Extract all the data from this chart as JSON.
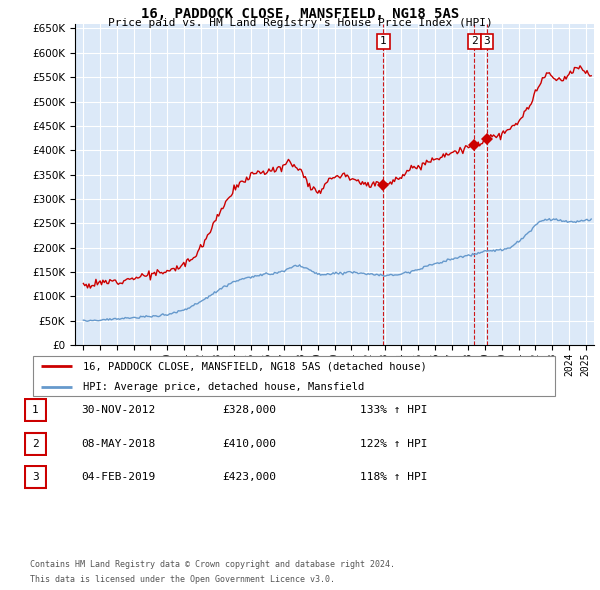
{
  "title": "16, PADDOCK CLOSE, MANSFIELD, NG18 5AS",
  "subtitle": "Price paid vs. HM Land Registry's House Price Index (HPI)",
  "red_line_label": "16, PADDOCK CLOSE, MANSFIELD, NG18 5AS (detached house)",
  "blue_line_label": "HPI: Average price, detached house, Mansfield",
  "transactions": [
    {
      "label": "1",
      "date": "30-NOV-2012",
      "price": 328000,
      "hpi_pct": "133% ↑ HPI",
      "x_year": 2012.92
    },
    {
      "label": "2",
      "date": "08-MAY-2018",
      "price": 410000,
      "hpi_pct": "122% ↑ HPI",
      "x_year": 2018.36
    },
    {
      "label": "3",
      "date": "04-FEB-2019",
      "price": 423000,
      "hpi_pct": "118% ↑ HPI",
      "x_year": 2019.09
    }
  ],
  "footer_line1": "Contains HM Land Registry data © Crown copyright and database right 2024.",
  "footer_line2": "This data is licensed under the Open Government Licence v3.0.",
  "plot_bg_color": "#dce9f8",
  "red_color": "#cc0000",
  "blue_color": "#6699cc",
  "grid_color": "#ffffff",
  "ylim": [
    0,
    660000
  ],
  "xlim_start": 1994.5,
  "xlim_end": 2025.5,
  "red_anchors": [
    [
      1995.0,
      125000
    ],
    [
      1995.5,
      122000
    ],
    [
      1996.0,
      128000
    ],
    [
      1996.5,
      130000
    ],
    [
      1997.0,
      132000
    ],
    [
      1997.5,
      135000
    ],
    [
      1998.0,
      138000
    ],
    [
      1998.5,
      142000
    ],
    [
      1999.0,
      145000
    ],
    [
      1999.5,
      148000
    ],
    [
      2000.0,
      150000
    ],
    [
      2000.5,
      158000
    ],
    [
      2001.0,
      165000
    ],
    [
      2001.5,
      178000
    ],
    [
      2002.0,
      200000
    ],
    [
      2002.5,
      230000
    ],
    [
      2003.0,
      265000
    ],
    [
      2003.5,
      295000
    ],
    [
      2004.0,
      318000
    ],
    [
      2004.5,
      335000
    ],
    [
      2005.0,
      348000
    ],
    [
      2005.5,
      358000
    ],
    [
      2006.0,
      355000
    ],
    [
      2006.5,
      360000
    ],
    [
      2007.0,
      368000
    ],
    [
      2007.3,
      378000
    ],
    [
      2007.6,
      370000
    ],
    [
      2008.0,
      358000
    ],
    [
      2008.3,
      340000
    ],
    [
      2008.6,
      325000
    ],
    [
      2009.0,
      315000
    ],
    [
      2009.3,
      320000
    ],
    [
      2009.6,
      340000
    ],
    [
      2009.9,
      348000
    ],
    [
      2010.2,
      345000
    ],
    [
      2010.5,
      350000
    ],
    [
      2010.8,
      348000
    ],
    [
      2011.0,
      345000
    ],
    [
      2011.3,
      340000
    ],
    [
      2011.6,
      335000
    ],
    [
      2011.9,
      330000
    ],
    [
      2012.2,
      328000
    ],
    [
      2012.5,
      330000
    ],
    [
      2012.92,
      328000
    ],
    [
      2013.2,
      332000
    ],
    [
      2013.5,
      338000
    ],
    [
      2013.8,
      342000
    ],
    [
      2014.0,
      348000
    ],
    [
      2014.5,
      358000
    ],
    [
      2015.0,
      368000
    ],
    [
      2015.5,
      375000
    ],
    [
      2016.0,
      383000
    ],
    [
      2016.5,
      390000
    ],
    [
      2017.0,
      395000
    ],
    [
      2017.5,
      400000
    ],
    [
      2018.0,
      405000
    ],
    [
      2018.36,
      410000
    ],
    [
      2018.7,
      415000
    ],
    [
      2019.09,
      423000
    ],
    [
      2019.4,
      430000
    ],
    [
      2019.7,
      428000
    ],
    [
      2020.0,
      432000
    ],
    [
      2020.3,
      438000
    ],
    [
      2020.6,
      445000
    ],
    [
      2020.9,
      455000
    ],
    [
      2021.2,
      468000
    ],
    [
      2021.5,
      485000
    ],
    [
      2021.8,
      500000
    ],
    [
      2022.0,
      515000
    ],
    [
      2022.2,
      530000
    ],
    [
      2022.4,
      545000
    ],
    [
      2022.6,
      555000
    ],
    [
      2022.8,
      560000
    ],
    [
      2023.0,
      548000
    ],
    [
      2023.2,
      542000
    ],
    [
      2023.4,
      548000
    ],
    [
      2023.6,
      540000
    ],
    [
      2023.8,
      545000
    ],
    [
      2024.0,
      555000
    ],
    [
      2024.3,
      565000
    ],
    [
      2024.6,
      570000
    ],
    [
      2024.9,
      565000
    ],
    [
      2025.0,
      560000
    ],
    [
      2025.3,
      555000
    ]
  ],
  "blue_anchors": [
    [
      1995.0,
      50000
    ],
    [
      1995.5,
      51000
    ],
    [
      1996.0,
      52000
    ],
    [
      1996.5,
      53000
    ],
    [
      1997.0,
      54000
    ],
    [
      1997.5,
      55000
    ],
    [
      1998.0,
      56000
    ],
    [
      1998.5,
      57000
    ],
    [
      1999.0,
      59000
    ],
    [
      1999.5,
      61000
    ],
    [
      2000.0,
      63000
    ],
    [
      2000.5,
      67000
    ],
    [
      2001.0,
      72000
    ],
    [
      2001.5,
      80000
    ],
    [
      2002.0,
      89000
    ],
    [
      2002.5,
      100000
    ],
    [
      2003.0,
      112000
    ],
    [
      2003.5,
      122000
    ],
    [
      2004.0,
      130000
    ],
    [
      2004.5,
      136000
    ],
    [
      2005.0,
      140000
    ],
    [
      2005.5,
      143000
    ],
    [
      2006.0,
      145000
    ],
    [
      2006.5,
      148000
    ],
    [
      2007.0,
      152000
    ],
    [
      2007.3,
      158000
    ],
    [
      2007.6,
      163000
    ],
    [
      2008.0,
      162000
    ],
    [
      2008.3,
      158000
    ],
    [
      2008.6,
      152000
    ],
    [
      2009.0,
      146000
    ],
    [
      2009.3,
      144000
    ],
    [
      2009.6,
      145000
    ],
    [
      2009.9,
      147000
    ],
    [
      2010.2,
      148000
    ],
    [
      2010.5,
      149000
    ],
    [
      2010.8,
      150000
    ],
    [
      2011.0,
      150000
    ],
    [
      2011.3,
      149000
    ],
    [
      2011.6,
      148000
    ],
    [
      2011.9,
      147000
    ],
    [
      2012.2,
      145000
    ],
    [
      2012.5,
      144000
    ],
    [
      2012.92,
      143000
    ],
    [
      2013.2,
      143000
    ],
    [
      2013.5,
      144000
    ],
    [
      2013.8,
      145000
    ],
    [
      2014.0,
      147000
    ],
    [
      2014.5,
      151000
    ],
    [
      2015.0,
      156000
    ],
    [
      2015.5,
      162000
    ],
    [
      2016.0,
      167000
    ],
    [
      2016.5,
      172000
    ],
    [
      2017.0,
      176000
    ],
    [
      2017.5,
      180000
    ],
    [
      2018.0,
      184000
    ],
    [
      2018.36,
      187000
    ],
    [
      2018.7,
      190000
    ],
    [
      2019.09,
      192000
    ],
    [
      2019.4,
      194000
    ],
    [
      2019.7,
      195000
    ],
    [
      2020.0,
      196000
    ],
    [
      2020.3,
      198000
    ],
    [
      2020.6,
      202000
    ],
    [
      2020.9,
      210000
    ],
    [
      2021.2,
      218000
    ],
    [
      2021.5,
      228000
    ],
    [
      2021.8,
      238000
    ],
    [
      2022.0,
      246000
    ],
    [
      2022.2,
      252000
    ],
    [
      2022.4,
      256000
    ],
    [
      2022.6,
      258000
    ],
    [
      2022.8,
      258000
    ],
    [
      2023.0,
      258000
    ],
    [
      2023.2,
      258000
    ],
    [
      2023.4,
      257000
    ],
    [
      2023.6,
      255000
    ],
    [
      2023.8,
      254000
    ],
    [
      2024.0,
      253000
    ],
    [
      2024.3,
      252000
    ],
    [
      2024.6,
      253000
    ],
    [
      2024.9,
      255000
    ],
    [
      2025.0,
      256000
    ],
    [
      2025.3,
      258000
    ]
  ]
}
